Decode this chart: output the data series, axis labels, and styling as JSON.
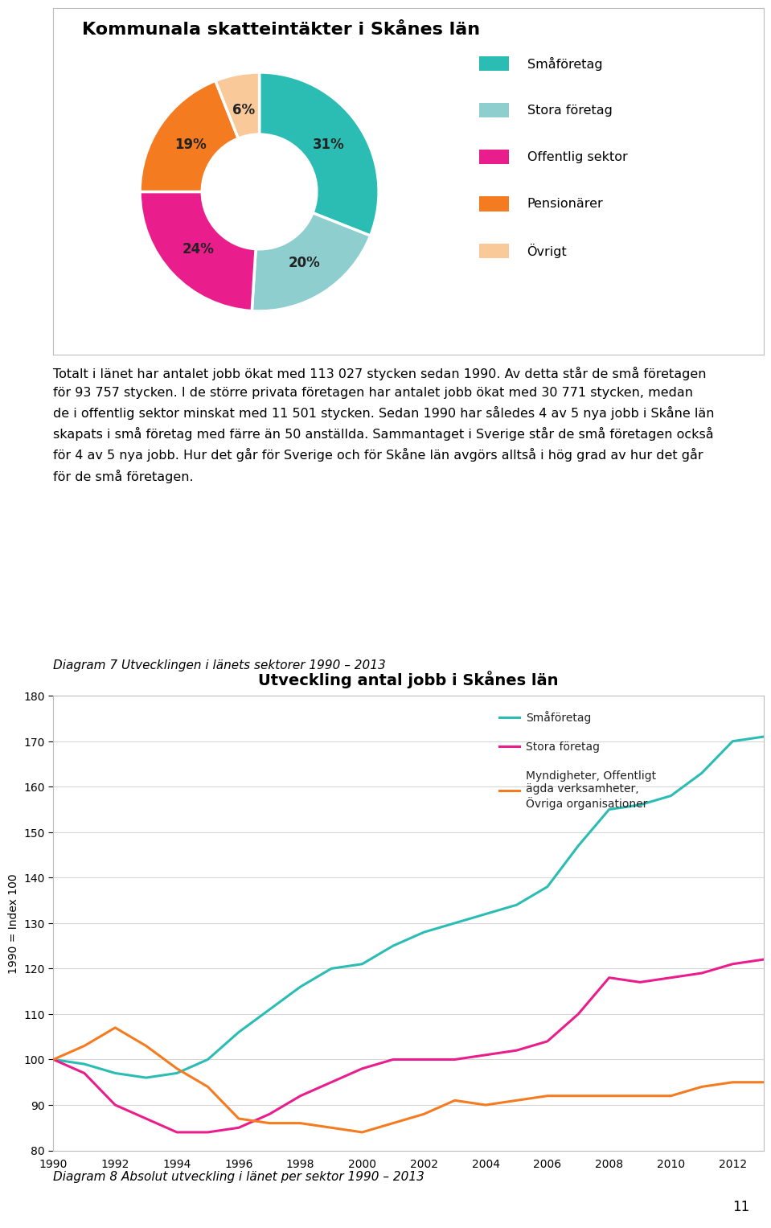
{
  "title": "Kommunala skatteintäkter i Skånes län",
  "pie_values": [
    31,
    20,
    24,
    19,
    6
  ],
  "pie_labels": [
    "31%",
    "20%",
    "24%",
    "19%",
    "6%"
  ],
  "pie_colors": [
    "#2BBCB4",
    "#8ECECE",
    "#E91E8C",
    "#F47B20",
    "#F9C99A"
  ],
  "pie_legend_labels": [
    "Småföretag",
    "Stora företag",
    "Offentlig sektor",
    "Pensionärer",
    "Övrigt"
  ],
  "body_text_lines": [
    "Totalt i länet har antalet jobb ökat med 113 027 stycken sedan 1990. Av detta står de små företagen",
    "för 93 757 stycken. I de större privata företagen har antalet jobb ökat med 30 771 stycken, medan",
    "de i offentlig sektor minskat med 11 501 stycken. Sedan 1990 har således 4 av 5 nya jobb i Skåne län",
    "skapats i små företag med färre än 50 anställda. Sammantaget i Sverige står de små företagen också",
    "för 4 av 5 nya jobb. Hur det går för Sverige och för Skåne län avgörs alltså i hög grad av hur det går",
    "för de små företagen."
  ],
  "diagram7_label": "Diagram 7 Utvecklingen i länets sektorer 1990 – 2013",
  "line_title": "Utveckling antal jobb i Skånes län",
  "years": [
    1990,
    1991,
    1992,
    1993,
    1994,
    1995,
    1996,
    1997,
    1998,
    1999,
    2000,
    2001,
    2002,
    2003,
    2004,
    2005,
    2006,
    2007,
    2008,
    2009,
    2010,
    2011,
    2012,
    2013
  ],
  "smaforetag": [
    100,
    99,
    97,
    96,
    97,
    100,
    106,
    111,
    116,
    120,
    121,
    125,
    128,
    130,
    132,
    134,
    138,
    147,
    155,
    156,
    158,
    163,
    170,
    171
  ],
  "storaforetag": [
    100,
    97,
    90,
    87,
    84,
    84,
    85,
    88,
    92,
    95,
    98,
    100,
    100,
    100,
    101,
    102,
    104,
    110,
    118,
    117,
    118,
    119,
    121,
    122
  ],
  "myndigheter": [
    100,
    103,
    107,
    103,
    98,
    94,
    87,
    86,
    86,
    85,
    84,
    86,
    88,
    91,
    90,
    91,
    92,
    92,
    92,
    92,
    92,
    94,
    95,
    95
  ],
  "line_colors": [
    "#2BBCB4",
    "#E91E8C",
    "#F47B20"
  ],
  "line_legend_labels": [
    "Småföretag",
    "Stora företag",
    "Myndigheter, Offentligt\nägda verksamheter,\nÖvriga organisationer"
  ],
  "ylabel": "1990 = Index 100",
  "ylim": [
    80,
    180
  ],
  "yticks": [
    80,
    90,
    100,
    110,
    120,
    130,
    140,
    150,
    160,
    170,
    180
  ],
  "diagram8_label": "Diagram 8 Absolut utveckling i länet per sektor 1990 – 2013",
  "page_number": "11",
  "background_color": "#FFFFFF"
}
